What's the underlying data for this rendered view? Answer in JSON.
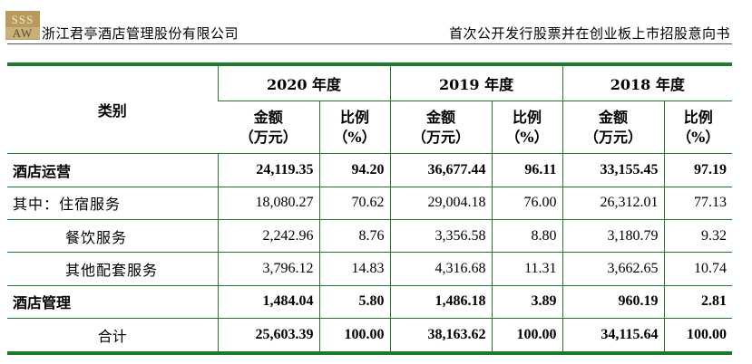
{
  "header": {
    "logo_line1": "SSS",
    "logo_line2": "AW",
    "company": "浙江君亭酒店管理股份有限公司",
    "document_title": "首次公开发行股票并在创业板上市招股意向书"
  },
  "table": {
    "category_header": "类别",
    "years": [
      "2020 年度",
      "2019 年度",
      "2018 年度"
    ],
    "amount_header_line1": "金额",
    "amount_header_line2": "（万元）",
    "ratio_header_line1": "比例",
    "ratio_header_line2": "（%）",
    "rows": [
      {
        "label": "酒店运营",
        "values": [
          "24,119.35",
          "94.20",
          "36,677.44",
          "96.11",
          "33,155.45",
          "97.19"
        ]
      },
      {
        "label": "其中：住宿服务",
        "values": [
          "18,080.27",
          "70.62",
          "29,004.18",
          "76.00",
          "26,312.01",
          "77.13"
        ]
      },
      {
        "label": "餐饮服务",
        "values": [
          "2,242.96",
          "8.76",
          "3,356.58",
          "8.80",
          "3,180.79",
          "9.32"
        ]
      },
      {
        "label": "其他配套服务",
        "values": [
          "3,796.12",
          "14.83",
          "4,316.68",
          "11.31",
          "3,662.65",
          "10.74"
        ]
      },
      {
        "label": "酒店管理",
        "values": [
          "1,484.04",
          "5.80",
          "1,486.18",
          "3.89",
          "960.19",
          "2.81"
        ]
      },
      {
        "label": "合计",
        "values": [
          "25,603.39",
          "100.00",
          "38,163.62",
          "100.00",
          "34,115.64",
          "100.00"
        ]
      }
    ]
  },
  "colors": {
    "rule_green": "#1d7a2c",
    "logo_gold": "#b89a5c"
  }
}
